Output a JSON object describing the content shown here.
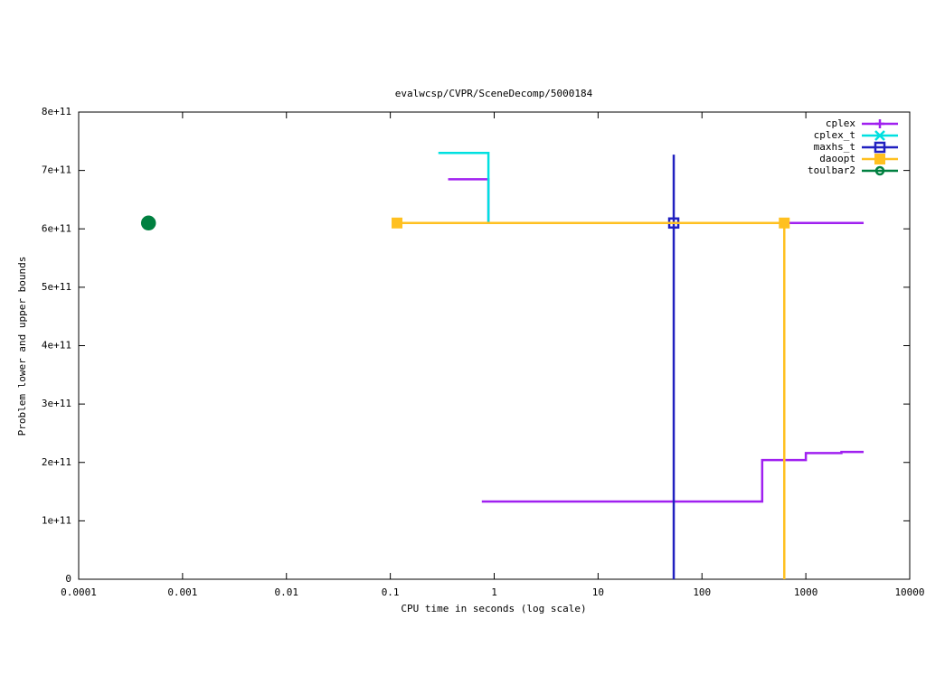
{
  "chart_data": {
    "type": "line",
    "title": "evalwcsp/CVPR/SceneDecomp/5000184",
    "x_label": "CPU time in seconds (log scale)",
    "y_label": "Problem lower and upper bounds",
    "xscale": "log",
    "xlim": [
      0.0001,
      10000
    ],
    "xticks": [
      0.0001,
      0.001,
      0.01,
      0.1,
      1,
      10,
      100,
      1000,
      10000
    ],
    "ylim": [
      0,
      800000000000
    ],
    "yticks": [
      0,
      {
        "value": 100000000000,
        "label": "1e+11"
      },
      {
        "value": 200000000000,
        "label": "2e+11"
      },
      {
        "value": 300000000000,
        "label": "3e+11"
      },
      {
        "value": 400000000000,
        "label": "4e+11"
      },
      {
        "value": 500000000000,
        "label": "5e+11"
      },
      {
        "value": 600000000000,
        "label": "6e+11"
      },
      {
        "value": 700000000000,
        "label": "7e+11"
      },
      {
        "value": 800000000000,
        "label": "8e+11"
      }
    ],
    "legend": "top-right",
    "series": [
      {
        "name": "cplex",
        "color": "#a020f0",
        "marker": "plus",
        "x": [
          0.36,
          0.88,
          0.88,
          3600,
          null,
          0.76,
          380,
          380,
          1000,
          1000,
          2200,
          2200,
          3600
        ],
        "values": [
          685000000000,
          685000000000,
          610000000000,
          610000000000,
          null,
          133000000000,
          133000000000,
          204000000000,
          204000000000,
          216000000000,
          216000000000,
          218000000000,
          218000000000
        ]
      },
      {
        "name": "cplex_t",
        "color": "#00e0e0",
        "marker": "cross",
        "x": [
          0.29,
          0.88,
          0.88
        ],
        "values": [
          730000000000,
          730000000000,
          610000000000
        ]
      },
      {
        "name": "maxhs_t",
        "color": "#2020c0",
        "marker": "square",
        "x": [
          53.5,
          53.5
        ],
        "values": [
          727000000000,
          0
        ],
        "markers": {
          "x": [
            53.5
          ],
          "values": [
            610000000000
          ]
        }
      },
      {
        "name": "daoopt",
        "color": "#ffc020",
        "marker": "filled-square",
        "x": [
          0.116,
          620,
          620
        ],
        "values": [
          610000000000,
          610000000000,
          0
        ],
        "markers": {
          "x": [
            0.116,
            620
          ],
          "values": [
            610000000000,
            610000000000
          ]
        }
      },
      {
        "name": "toulbar2",
        "color": "#008040",
        "marker": "circle",
        "markers": {
          "x": [
            0.00047
          ],
          "values": [
            610000000000
          ]
        }
      }
    ]
  }
}
